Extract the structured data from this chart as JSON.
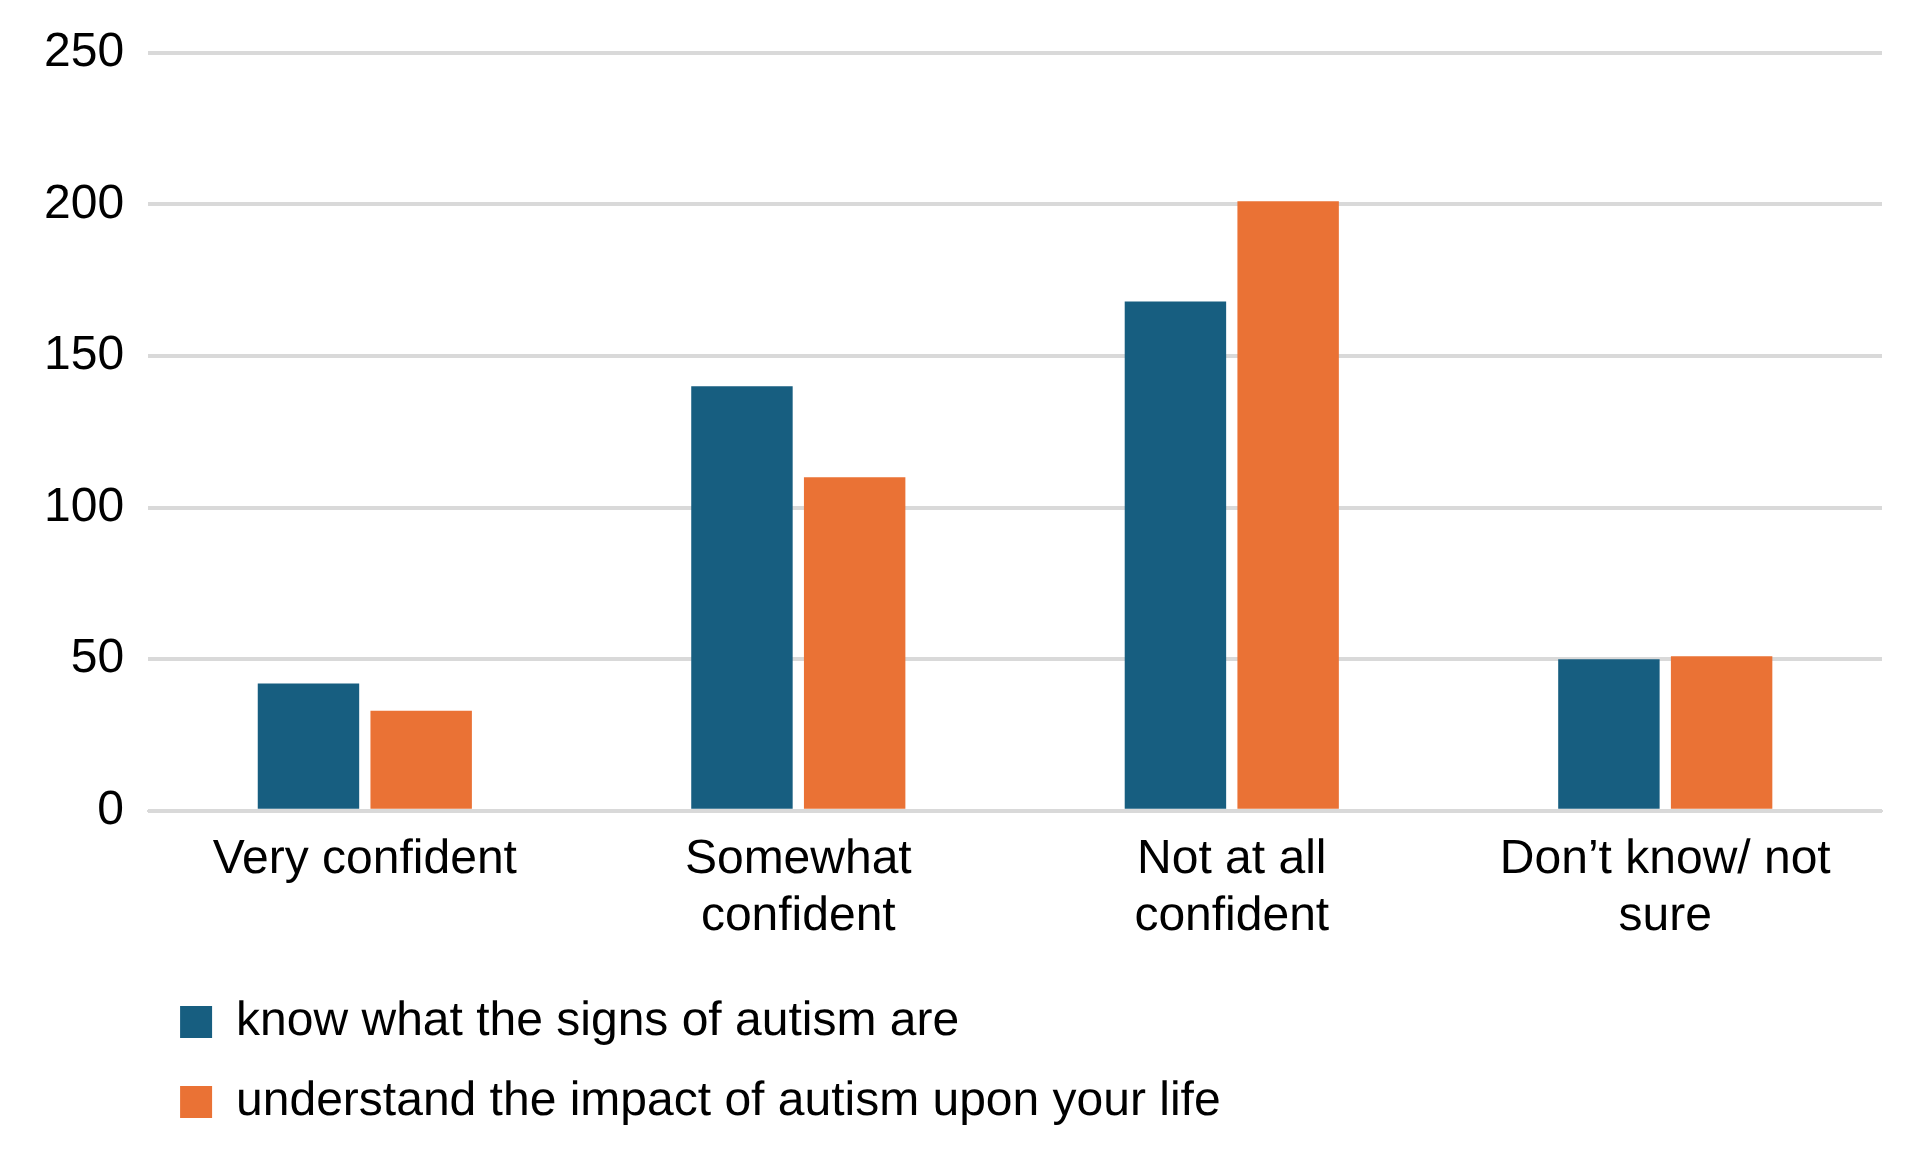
{
  "chart_data": {
    "type": "bar",
    "categories": [
      "Very confident",
      "Somewhat confident",
      "Not at all confident",
      "Don’t know/ not sure"
    ],
    "series": [
      {
        "name": "know what the signs of autism are",
        "color": "#175e80",
        "values": [
          42,
          140,
          168,
          50
        ]
      },
      {
        "name": "understand the impact of autism upon your life",
        "color": "#ea7235",
        "values": [
          33,
          110,
          201,
          51
        ]
      }
    ],
    "ylim": [
      0,
      250
    ],
    "yticks": [
      0,
      50,
      100,
      150,
      200,
      250
    ],
    "grid": "y",
    "legend": "bottom"
  }
}
